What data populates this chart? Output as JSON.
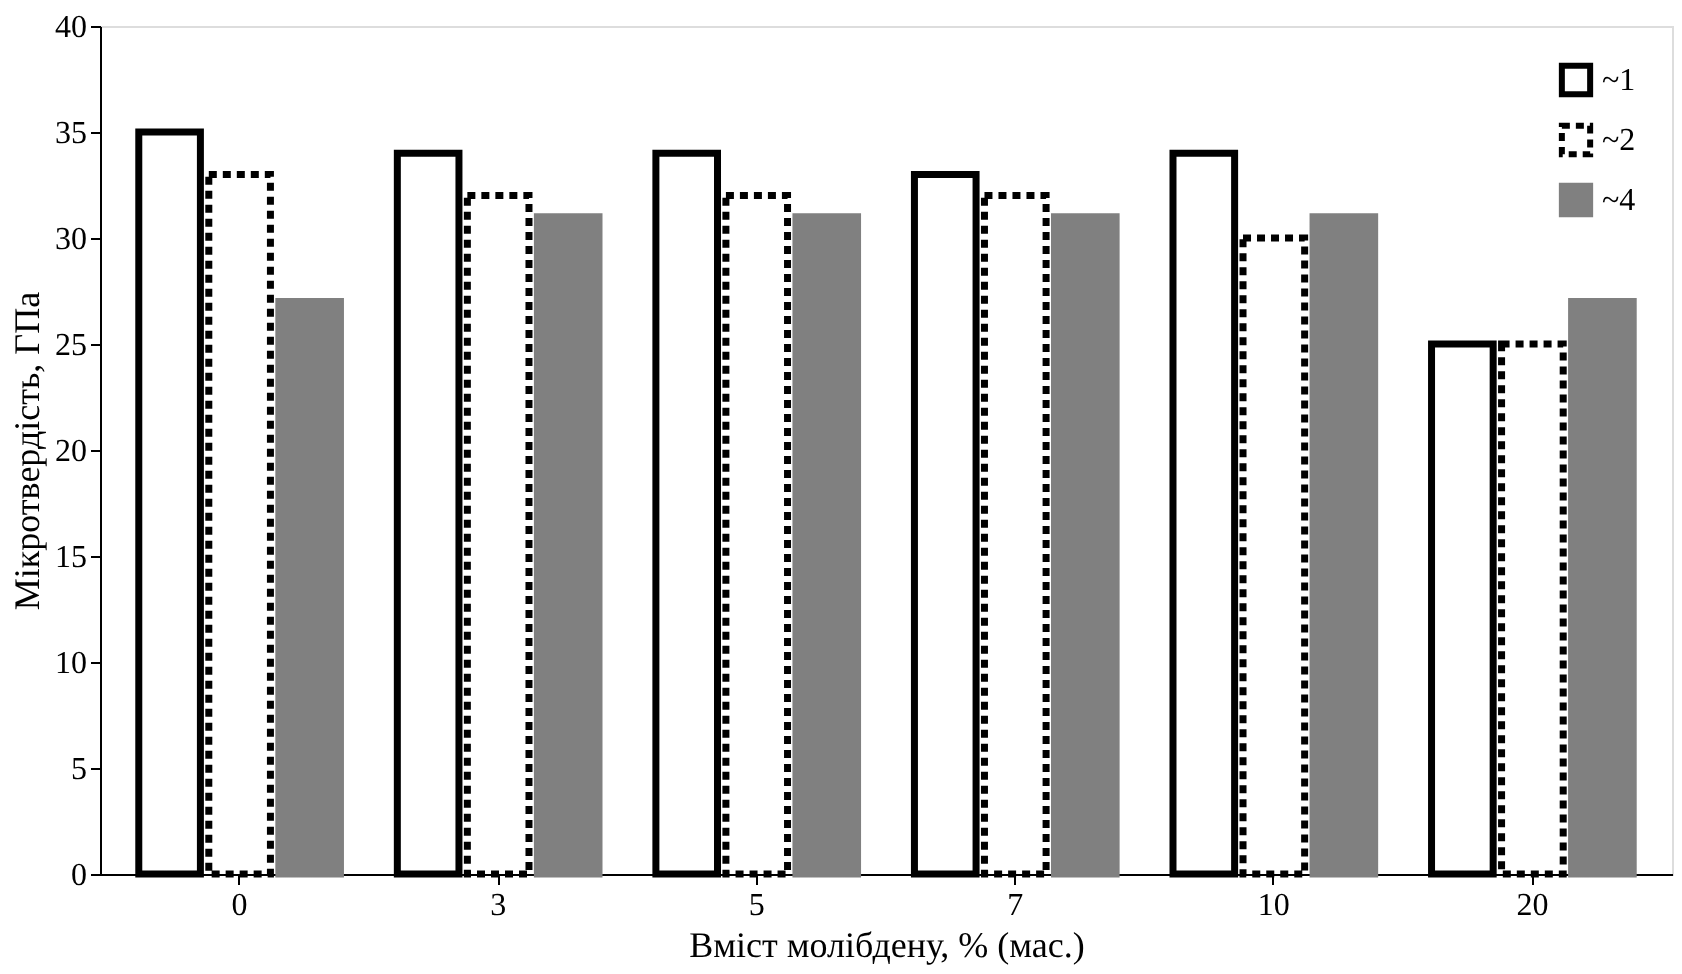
{
  "chart_data": {
    "type": "bar",
    "xlabel": "Вміст молібдену, % (мас.)",
    "ylabel": "Мікротвердість, ГПа",
    "categories": [
      "0",
      "3",
      "5",
      "7",
      "10",
      "20"
    ],
    "series": [
      {
        "name": "~1",
        "color": "#000000",
        "line_style": "solid",
        "values": [
          35,
          34,
          34,
          33,
          34,
          25
        ]
      },
      {
        "name": "~2",
        "color": "#000000",
        "line_style": "dotted",
        "values": [
          33,
          32,
          32,
          32,
          30,
          25
        ]
      },
      {
        "name": "~4",
        "color": "#808080",
        "values": [
          27,
          31,
          31,
          31,
          31,
          27
        ]
      }
    ],
    "ylim": [
      0,
      40
    ],
    "yticks": [
      0,
      5,
      10,
      15,
      20,
      25,
      30,
      35,
      40
    ],
    "grid": false,
    "legend": "top right"
  }
}
